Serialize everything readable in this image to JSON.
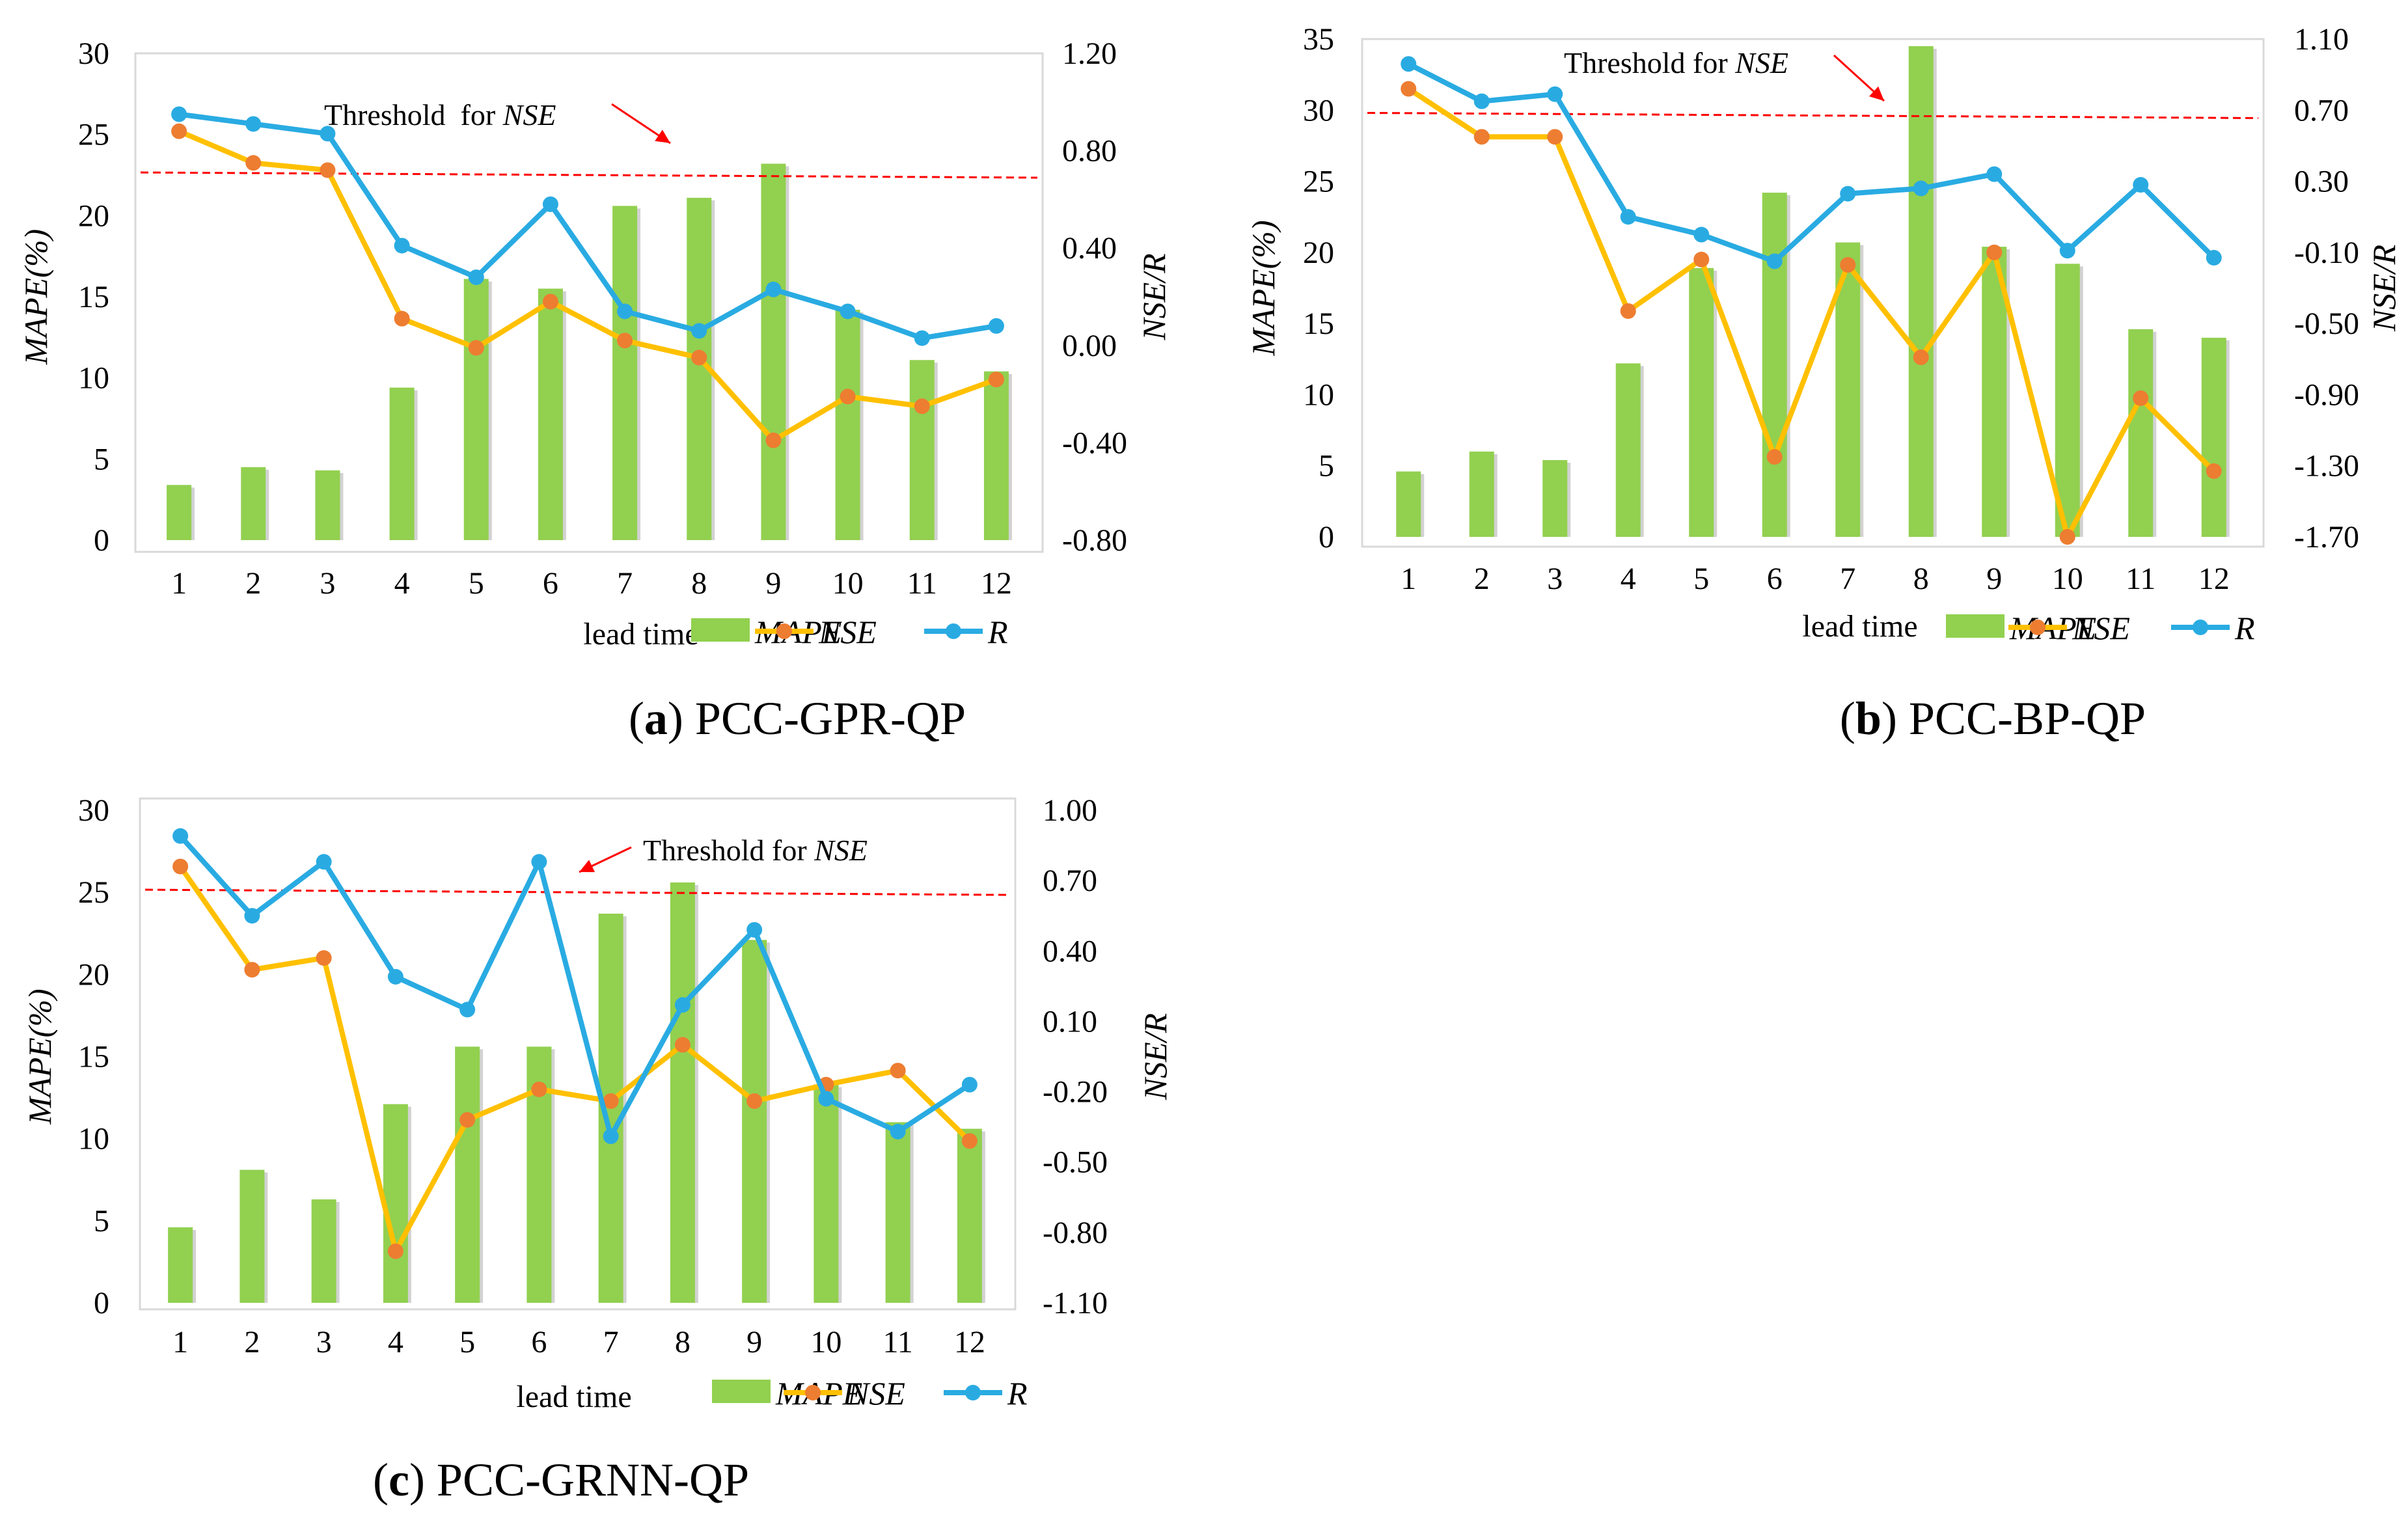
{
  "figure": {
    "panels": [
      {
        "caption_tag": "a",
        "caption_text": "PCC-GPR-QP",
        "threshold_label": "Threshold  for ",
        "threshold_label_italic": "NSE"
      },
      {
        "caption_tag": "b",
        "caption_text": "PCC-BP-QP",
        "threshold_label": "Threshold for ",
        "threshold_label_italic": "NSE"
      },
      {
        "caption_tag": "c",
        "caption_text": "PCC-GRNN-QP",
        "threshold_label": "Threshold for ",
        "threshold_label_italic": "NSE"
      }
    ]
  },
  "chart_data": [
    {
      "type": "bar+line",
      "title": "(a) PCC-GPR-QP",
      "xlabel": "lead time",
      "ylabel_left": "MAPE(%)",
      "ylabel_right": "NSE/R",
      "categories": [
        "1",
        "2",
        "3",
        "4",
        "5",
        "6",
        "7",
        "8",
        "9",
        "10",
        "11",
        "12"
      ],
      "y_left_range": [
        0,
        30
      ],
      "y_left_ticks": [
        "0",
        "5",
        "10",
        "15",
        "20",
        "25",
        "30"
      ],
      "y_right_range": [
        -0.8,
        1.2
      ],
      "y_right_ticks": [
        "-0.80",
        "-0.40",
        "0.00",
        "0.40",
        "0.80",
        "1.20"
      ],
      "threshold_nse": 0.7,
      "series": [
        {
          "name": "MAPE",
          "axis": "left",
          "kind": "bar",
          "color": "#92d050",
          "values": [
            3.4,
            4.5,
            4.3,
            9.4,
            16.1,
            15.5,
            20.6,
            21.1,
            23.2,
            14.2,
            11.1,
            10.4
          ]
        },
        {
          "name": "NSE",
          "axis": "right",
          "kind": "line",
          "color": "#ffc000",
          "marker": "#ed7d31",
          "values": [
            0.88,
            0.75,
            0.72,
            0.11,
            -0.01,
            0.18,
            0.02,
            -0.05,
            -0.39,
            -0.21,
            -0.25,
            -0.14
          ]
        },
        {
          "name": "R",
          "axis": "right",
          "kind": "line",
          "color": "#29abe2",
          "marker": "#29abe2",
          "values": [
            0.95,
            0.91,
            0.87,
            0.41,
            0.28,
            0.58,
            0.14,
            0.06,
            0.23,
            0.14,
            0.03,
            0.08
          ]
        }
      ]
    },
    {
      "type": "bar+line",
      "title": "(b) PCC-BP-QP",
      "xlabel": "lead time",
      "ylabel_left": "MAPE(%)",
      "ylabel_right": "NSE/R",
      "categories": [
        "1",
        "2",
        "3",
        "4",
        "5",
        "6",
        "7",
        "8",
        "9",
        "10",
        "11",
        "12"
      ],
      "y_left_range": [
        0,
        35
      ],
      "y_left_ticks": [
        "0",
        "5",
        "10",
        "15",
        "20",
        "25",
        "30",
        "35"
      ],
      "y_right_range": [
        -1.7,
        1.1
      ],
      "y_right_ticks": [
        "-1.70",
        "-1.30",
        "-0.90",
        "-0.50",
        "-0.10",
        "0.30",
        "0.70",
        "1.10"
      ],
      "threshold_nse": 0.67,
      "series": [
        {
          "name": "MAPE",
          "axis": "left",
          "kind": "bar",
          "color": "#92d050",
          "values": [
            4.6,
            6.0,
            5.4,
            12.2,
            18.9,
            24.2,
            20.7,
            34.5,
            20.4,
            19.2,
            14.6,
            14.0
          ]
        },
        {
          "name": "NSE",
          "axis": "right",
          "kind": "line",
          "color": "#ffc000",
          "marker": "#ed7d31",
          "values": [
            0.82,
            0.55,
            0.55,
            -0.43,
            -0.14,
            -1.25,
            -0.17,
            -0.69,
            -0.1,
            -1.7,
            -0.92,
            -1.33
          ]
        },
        {
          "name": "R",
          "axis": "right",
          "kind": "line",
          "color": "#29abe2",
          "marker": "#29abe2",
          "values": [
            0.96,
            0.75,
            0.79,
            0.1,
            0.0,
            -0.15,
            0.23,
            0.26,
            0.34,
            -0.09,
            0.28,
            -0.13
          ]
        }
      ]
    },
    {
      "type": "bar+line",
      "title": "(c) PCC-GRNN-QP",
      "xlabel": "lead time",
      "ylabel_left": "MAPE(%)",
      "ylabel_right": "NSE/R",
      "categories": [
        "1",
        "2",
        "3",
        "4",
        "5",
        "6",
        "7",
        "8",
        "9",
        "10",
        "11",
        "12"
      ],
      "y_left_range": [
        0,
        30
      ],
      "y_left_ticks": [
        "0",
        "5",
        "10",
        "15",
        "20",
        "25",
        "30"
      ],
      "y_right_range": [
        -1.1,
        1.0
      ],
      "y_right_ticks": [
        "-1.10",
        "-0.80",
        "-0.50",
        "-0.20",
        "0.10",
        "0.40",
        "0.70",
        "1.00"
      ],
      "threshold_nse": 0.65,
      "series": [
        {
          "name": "MAPE",
          "axis": "left",
          "kind": "bar",
          "color": "#92d050",
          "values": [
            4.6,
            8.1,
            6.3,
            12.1,
            15.6,
            15.6,
            23.7,
            25.6,
            22.1,
            13.3,
            11.0,
            10.6
          ]
        },
        {
          "name": "NSE",
          "axis": "right",
          "kind": "line",
          "color": "#ffc000",
          "marker": "#ed7d31",
          "values": [
            0.76,
            0.32,
            0.37,
            -0.88,
            -0.32,
            -0.19,
            -0.24,
            0.0,
            -0.24,
            -0.17,
            -0.11,
            -0.41
          ]
        },
        {
          "name": "R",
          "axis": "right",
          "kind": "line",
          "color": "#29abe2",
          "marker": "#29abe2",
          "values": [
            0.89,
            0.55,
            0.78,
            0.29,
            0.15,
            0.78,
            -0.39,
            0.17,
            0.49,
            -0.23,
            -0.37,
            -0.17
          ]
        }
      ]
    }
  ]
}
